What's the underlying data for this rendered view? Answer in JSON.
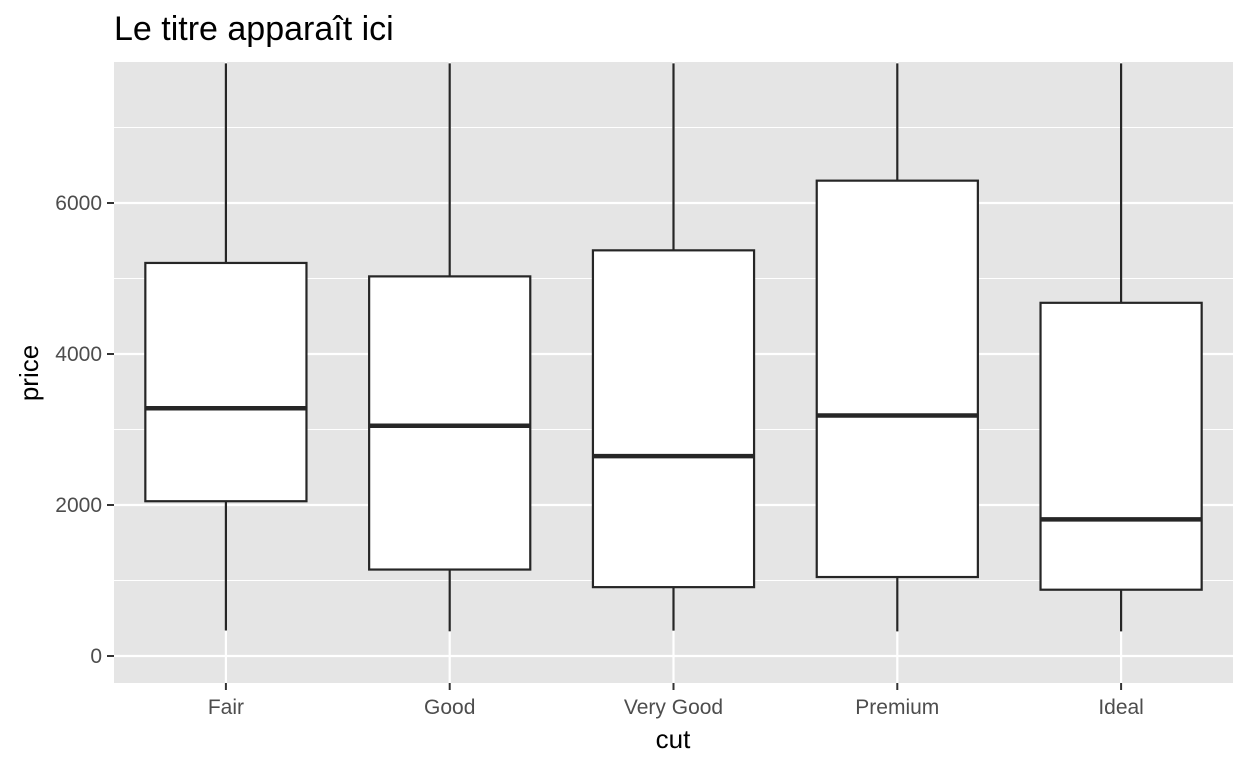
{
  "chart_data": {
    "type": "boxplot",
    "title": "Le titre apparaît ici",
    "xlabel": "cut",
    "ylabel": "price",
    "categories": [
      "Fair",
      "Good",
      "Very Good",
      "Premium",
      "Ideal"
    ],
    "ylim": [
      -370,
      7850
    ],
    "yticks": [
      0,
      2000,
      4000,
      6000
    ],
    "ytick_labels": [
      "0",
      "2000",
      "4000",
      "6000"
    ],
    "boxes": [
      {
        "category": "Fair",
        "whisker_low": 337,
        "q1": 2050,
        "median": 3282,
        "q3": 5206,
        "whisker_high": 7850
      },
      {
        "category": "Good",
        "whisker_low": 327,
        "q1": 1145,
        "median": 3050,
        "q3": 5028,
        "whisker_high": 7850
      },
      {
        "category": "Very Good",
        "whisker_low": 336,
        "q1": 912,
        "median": 2648,
        "q3": 5373,
        "whisker_high": 7850
      },
      {
        "category": "Premium",
        "whisker_low": 326,
        "q1": 1046,
        "median": 3185,
        "q3": 6296,
        "whisker_high": 7850
      },
      {
        "category": "Ideal",
        "whisker_low": 326,
        "q1": 878,
        "median": 1810,
        "q3": 4678,
        "whisker_high": 7850
      }
    ],
    "colors": {
      "panel_background": "#e5e5e5",
      "grid": "#ffffff",
      "box_fill": "#ffffff",
      "box_stroke": "#262626",
      "tick_label": "#4d4d4d",
      "tick_mark": "#333333"
    },
    "grid": true,
    "legend": "none"
  }
}
